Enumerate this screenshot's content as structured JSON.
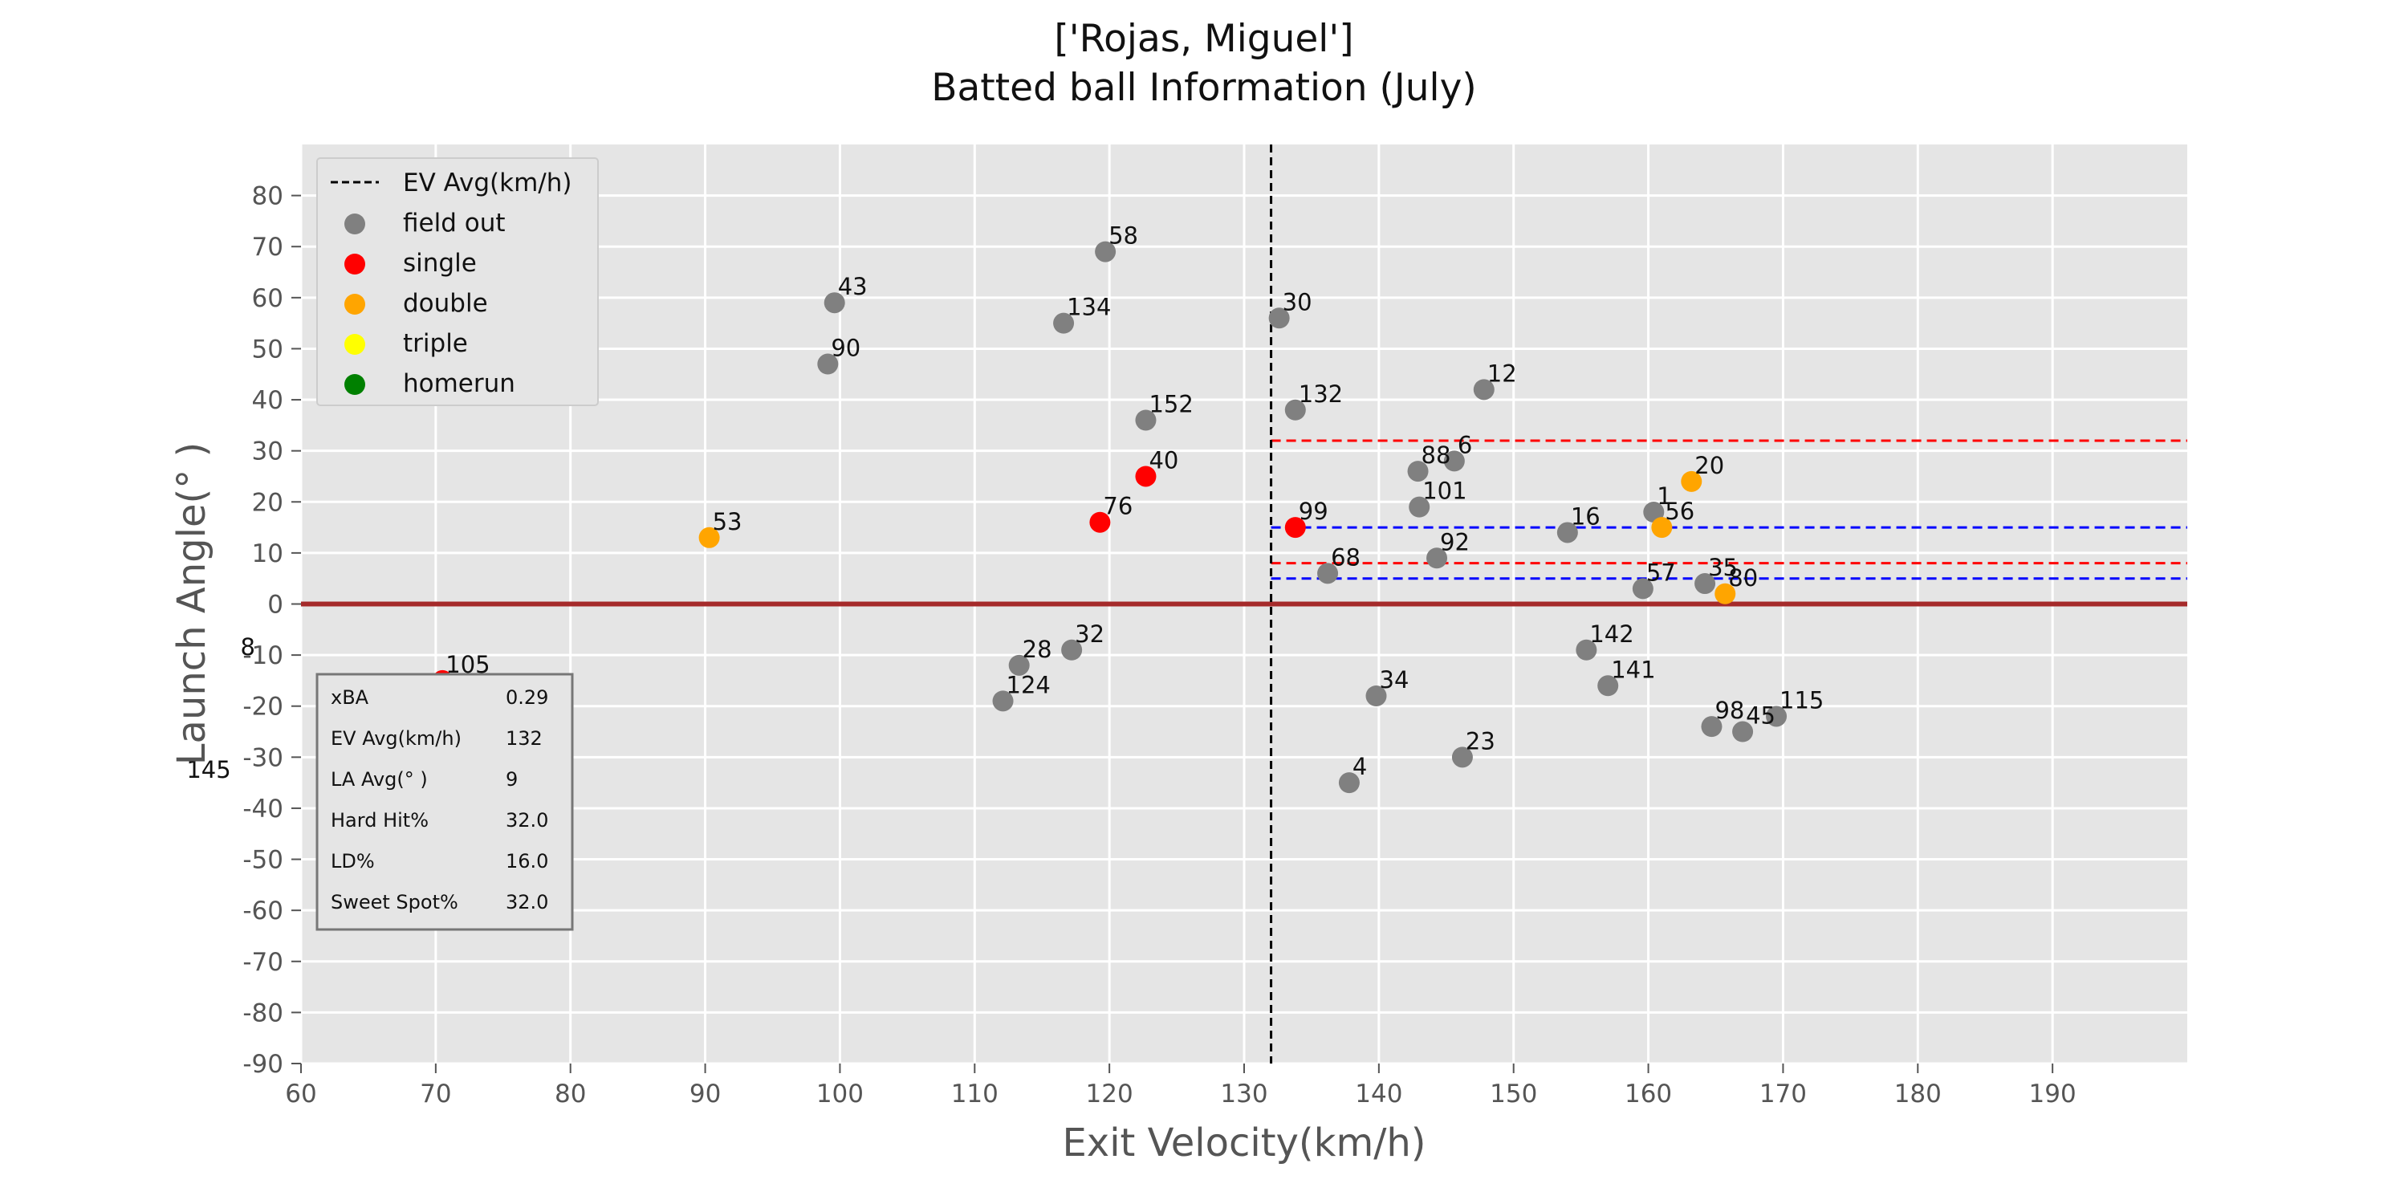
{
  "chart_data": {
    "type": "scatter",
    "title_line1": "['Rojas, Miguel']",
    "title_line2": "Batted ball Information (July)",
    "xlabel": "Exit Velocity(km/h)",
    "ylabel": "Launch Angle(°  )",
    "xlim": [
      60,
      200
    ],
    "ylim": [
      -90,
      90
    ],
    "xticks": [
      60,
      70,
      80,
      90,
      100,
      110,
      120,
      130,
      140,
      150,
      160,
      170,
      180,
      190
    ],
    "yticks": [
      80,
      70,
      60,
      50,
      40,
      30,
      20,
      10,
      0,
      -10,
      -20,
      -30,
      -40,
      -50,
      -60,
      -70,
      -80,
      -90
    ],
    "grid": true,
    "colors": {
      "background": "#e5e5e5",
      "grid": "#ffffff",
      "field_out": "#808080",
      "single": "#ff0000",
      "double": "#ffa500",
      "triple": "#ffff00",
      "homerun": "#008000",
      "zero_line": "#a52a2a",
      "ev_avg_line": "#000000",
      "zone_red": "#ff0000",
      "zone_blue": "#0000ff"
    },
    "ev_avg_line": {
      "label": "EV Avg(km/h)",
      "x": 132
    },
    "zero_line": {
      "y": 0
    },
    "zones": [
      {
        "color": "zone_red",
        "y": 32,
        "x_from": 132
      },
      {
        "color": "zone_blue",
        "y": 15,
        "x_from": 132
      },
      {
        "color": "zone_red",
        "y": 8,
        "x_from": 132
      },
      {
        "color": "zone_blue",
        "y": 5,
        "x_from": 132
      }
    ],
    "legend": [
      {
        "key": "ev_avg",
        "label": "EV Avg(km/h)"
      },
      {
        "key": "field_out",
        "label": "field out"
      },
      {
        "key": "single",
        "label": "single"
      },
      {
        "key": "double",
        "label": "double"
      },
      {
        "key": "triple",
        "label": "triple"
      },
      {
        "key": "homerun",
        "label": "homerun"
      }
    ],
    "points": [
      {
        "label": "58",
        "x": 119.7,
        "y": 69,
        "type": "field_out"
      },
      {
        "label": "43",
        "x": 99.6,
        "y": 59,
        "type": "field_out"
      },
      {
        "label": "134",
        "x": 116.6,
        "y": 55,
        "type": "field_out"
      },
      {
        "label": "30",
        "x": 132.6,
        "y": 56,
        "type": "field_out"
      },
      {
        "label": "90",
        "x": 99.1,
        "y": 47,
        "type": "field_out"
      },
      {
        "label": "12",
        "x": 147.8,
        "y": 42,
        "type": "field_out"
      },
      {
        "label": "132",
        "x": 133.8,
        "y": 38,
        "type": "field_out"
      },
      {
        "label": "152",
        "x": 122.7,
        "y": 36,
        "type": "field_out"
      },
      {
        "label": "6",
        "x": 145.6,
        "y": 28,
        "type": "field_out"
      },
      {
        "label": "88",
        "x": 142.9,
        "y": 26,
        "type": "field_out"
      },
      {
        "label": "40",
        "x": 122.7,
        "y": 25,
        "type": "single"
      },
      {
        "label": "20",
        "x": 163.2,
        "y": 24,
        "type": "double"
      },
      {
        "label": "101",
        "x": 143.0,
        "y": 19,
        "type": "field_out"
      },
      {
        "label": "1",
        "x": 160.4,
        "y": 18,
        "type": "field_out"
      },
      {
        "label": "76",
        "x": 119.3,
        "y": 16,
        "type": "single"
      },
      {
        "label": "56",
        "x": 161.0,
        "y": 15,
        "type": "double"
      },
      {
        "label": "99",
        "x": 133.8,
        "y": 15,
        "type": "single"
      },
      {
        "label": "16",
        "x": 154.0,
        "y": 14,
        "type": "field_out"
      },
      {
        "label": "53",
        "x": 90.3,
        "y": 13,
        "type": "double"
      },
      {
        "label": "92",
        "x": 144.3,
        "y": 9,
        "type": "field_out"
      },
      {
        "label": "68",
        "x": 136.2,
        "y": 6,
        "type": "field_out"
      },
      {
        "label": "35",
        "x": 164.2,
        "y": 4,
        "type": "field_out"
      },
      {
        "label": "57",
        "x": 159.6,
        "y": 3,
        "type": "field_out"
      },
      {
        "label": "80",
        "x": 165.7,
        "y": 2,
        "type": "double"
      },
      {
        "label": "142",
        "x": 155.4,
        "y": -9,
        "type": "field_out"
      },
      {
        "label": "32",
        "x": 117.2,
        "y": -9,
        "type": "field_out"
      },
      {
        "label": "28",
        "x": 113.3,
        "y": -12,
        "type": "field_out"
      },
      {
        "label": "105",
        "x": 70.5,
        "y": -15,
        "type": "single"
      },
      {
        "label": "141",
        "x": 157.0,
        "y": -16,
        "type": "field_out"
      },
      {
        "label": "34",
        "x": 139.8,
        "y": -18,
        "type": "field_out"
      },
      {
        "label": "124",
        "x": 112.1,
        "y": -19,
        "type": "field_out"
      },
      {
        "label": "115",
        "x": 169.5,
        "y": -22,
        "type": "field_out"
      },
      {
        "label": "98",
        "x": 164.7,
        "y": -24,
        "type": "field_out"
      },
      {
        "label": "45",
        "x": 167.0,
        "y": -25,
        "type": "field_out"
      },
      {
        "label": "23",
        "x": 146.2,
        "y": -30,
        "type": "field_out"
      },
      {
        "label": "4",
        "x": 137.8,
        "y": -35,
        "type": "field_out"
      }
    ],
    "stray_labels": [
      {
        "label": "8",
        "x": 55.5,
        "y": -10
      },
      {
        "label": "145",
        "x": 51.5,
        "y": -34
      }
    ],
    "stats": [
      {
        "name": "xBA",
        "value": "0.29"
      },
      {
        "name": "EV Avg(km/h)",
        "value": "132"
      },
      {
        "name": "LA Avg(°  )",
        "value": "9"
      },
      {
        "name": "Hard Hit%",
        "value": "32.0"
      },
      {
        "name": "LD%",
        "value": "16.0"
      },
      {
        "name": "Sweet Spot%",
        "value": "32.0"
      }
    ]
  }
}
